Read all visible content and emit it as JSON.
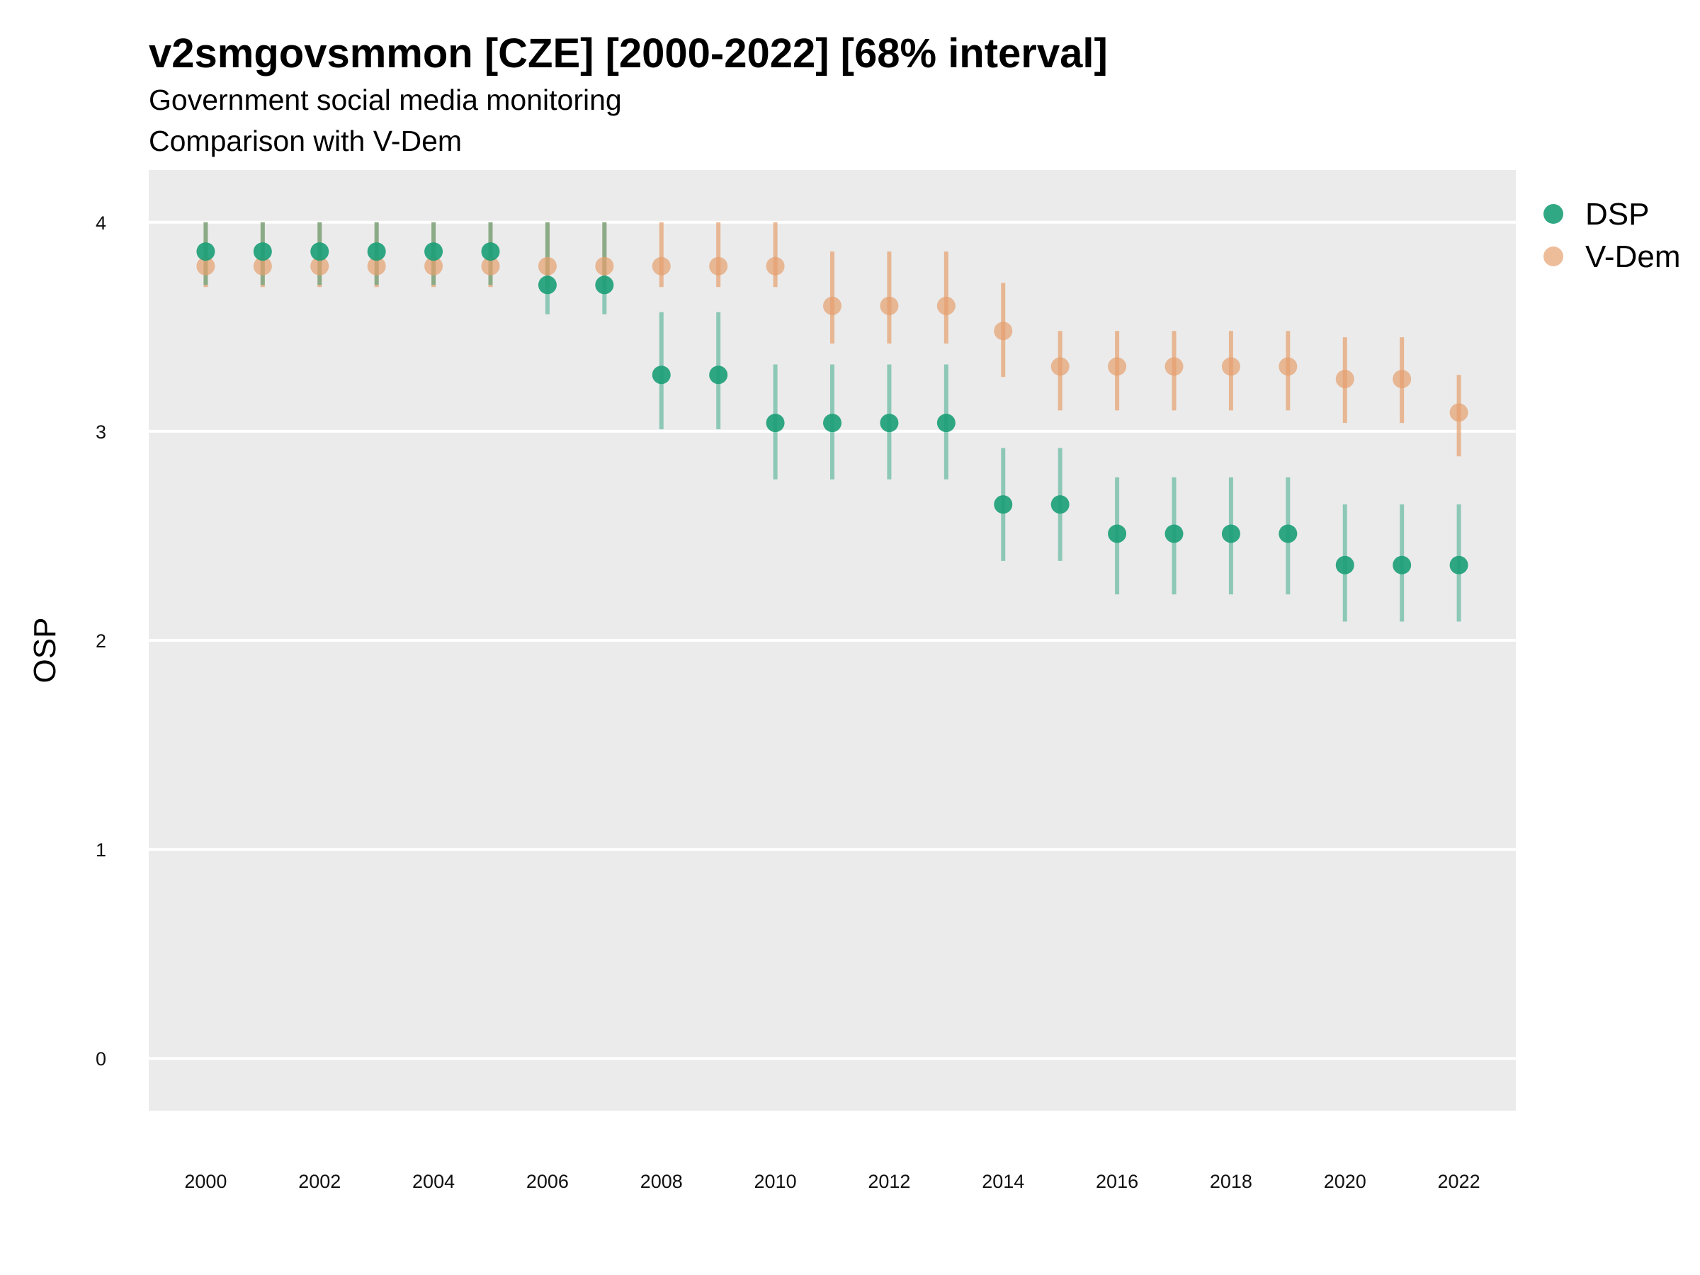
{
  "chart_data": {
    "type": "scatter",
    "title": "v2smgovsmmon [CZE] [2000-2022] [68% interval]",
    "subtitle": "Government social media monitoring",
    "subtitle2": "Comparison with V-Dem",
    "xlabel": "",
    "ylabel": "OSP",
    "x_ticks": [
      2000,
      2002,
      2004,
      2006,
      2008,
      2010,
      2012,
      2014,
      2016,
      2018,
      2020,
      2022
    ],
    "y_ticks": [
      0,
      1,
      2,
      3,
      4
    ],
    "xlim": [
      1999,
      2023
    ],
    "ylim": [
      -0.25,
      4.25
    ],
    "grid": true,
    "legend_position": "right-top",
    "x": [
      2000,
      2001,
      2002,
      2003,
      2004,
      2005,
      2006,
      2007,
      2008,
      2009,
      2010,
      2011,
      2012,
      2013,
      2014,
      2015,
      2016,
      2017,
      2018,
      2019,
      2020,
      2021,
      2022
    ],
    "series": [
      {
        "name": "DSP",
        "color": "#1b9e77",
        "values": [
          3.86,
          3.86,
          3.86,
          3.86,
          3.86,
          3.86,
          3.7,
          3.7,
          3.27,
          3.27,
          3.04,
          3.04,
          3.04,
          3.04,
          2.65,
          2.65,
          2.51,
          2.51,
          2.51,
          2.51,
          2.36,
          2.36,
          2.36
        ],
        "lower": [
          3.7,
          3.7,
          3.7,
          3.7,
          3.7,
          3.7,
          3.56,
          3.56,
          3.01,
          3.01,
          2.77,
          2.77,
          2.77,
          2.77,
          2.38,
          2.38,
          2.22,
          2.22,
          2.22,
          2.22,
          2.09,
          2.09,
          2.09
        ],
        "upper": [
          4.0,
          4.0,
          4.0,
          4.0,
          4.0,
          4.0,
          4.0,
          4.0,
          3.57,
          3.57,
          3.32,
          3.32,
          3.32,
          3.32,
          2.92,
          2.92,
          2.78,
          2.78,
          2.78,
          2.78,
          2.65,
          2.65,
          2.65
        ]
      },
      {
        "name": "V-Dem",
        "color": "#e6a06e",
        "values": [
          3.79,
          3.79,
          3.79,
          3.79,
          3.79,
          3.79,
          3.79,
          3.79,
          3.79,
          3.79,
          3.79,
          3.6,
          3.6,
          3.6,
          3.48,
          3.31,
          3.31,
          3.31,
          3.31,
          3.31,
          3.25,
          3.25,
          3.09
        ],
        "lower": [
          3.69,
          3.69,
          3.69,
          3.69,
          3.69,
          3.69,
          3.69,
          3.69,
          3.69,
          3.69,
          3.69,
          3.42,
          3.42,
          3.42,
          3.26,
          3.1,
          3.1,
          3.1,
          3.1,
          3.1,
          3.04,
          3.04,
          2.88
        ],
        "upper": [
          4.0,
          4.0,
          4.0,
          4.0,
          4.0,
          4.0,
          4.0,
          4.0,
          4.0,
          4.0,
          4.0,
          3.86,
          3.86,
          3.86,
          3.71,
          3.48,
          3.48,
          3.48,
          3.48,
          3.48,
          3.45,
          3.45,
          3.27
        ]
      }
    ]
  }
}
